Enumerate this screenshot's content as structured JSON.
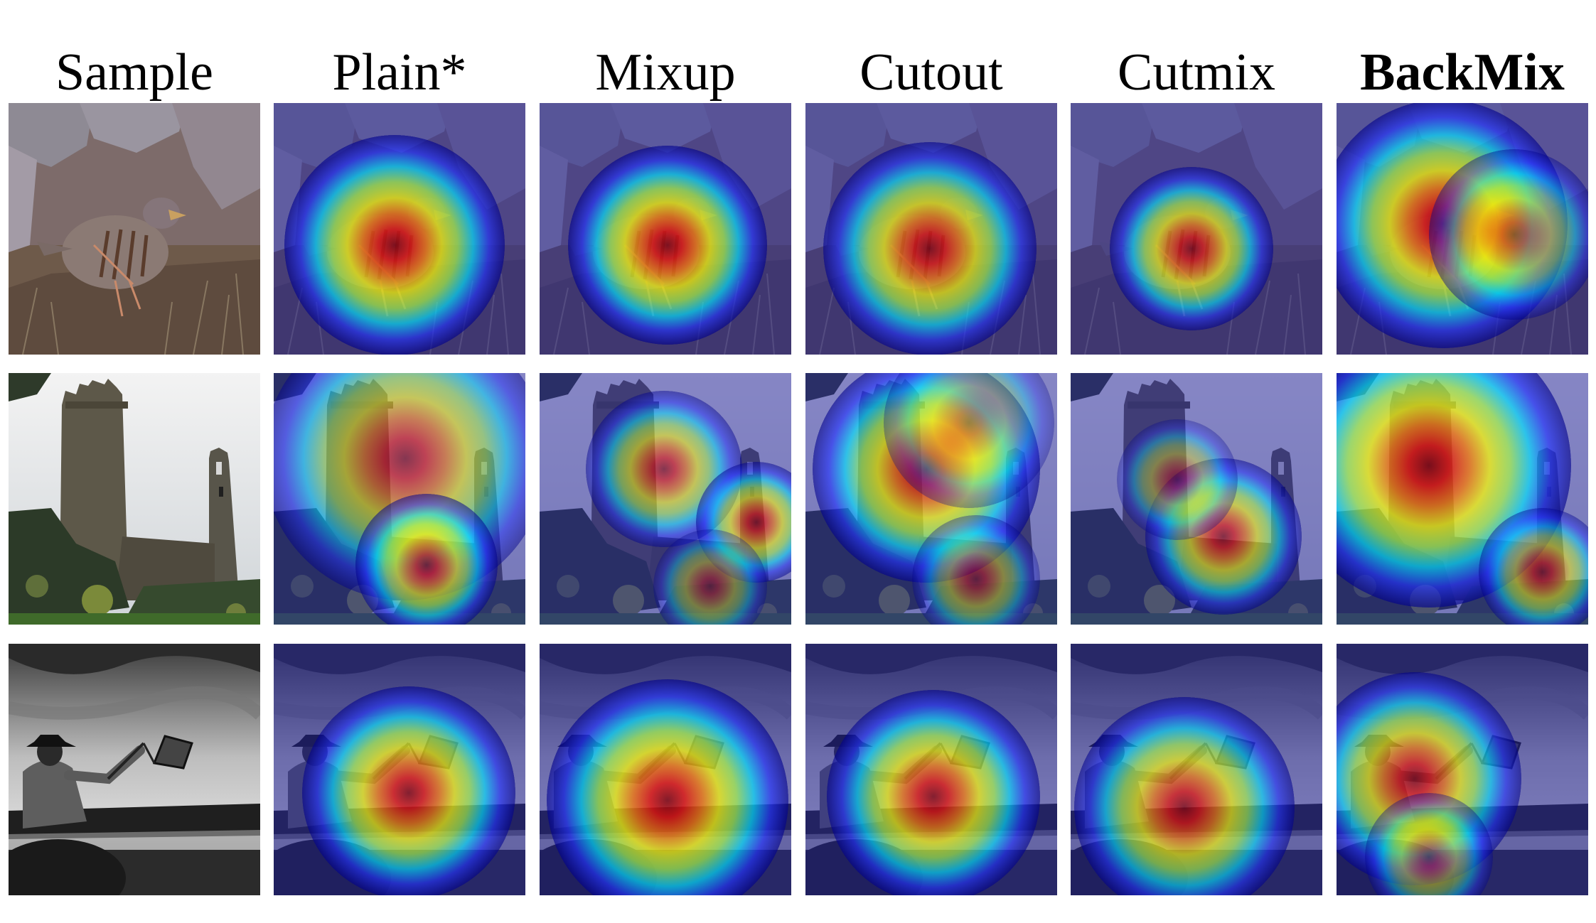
{
  "figure": {
    "columns": [
      {
        "label": "Sample",
        "bold": false
      },
      {
        "label": "Plain*",
        "bold": false
      },
      {
        "label": "Mixup",
        "bold": false
      },
      {
        "label": "Cutout",
        "bold": false
      },
      {
        "label": "Cutmix",
        "bold": false
      },
      {
        "label": "BackMix",
        "bold": true
      }
    ],
    "rows": [
      {
        "subject": "partridge-on-rocks"
      },
      {
        "subject": "stone-castle-tower"
      },
      {
        "subject": "rider-with-flag"
      }
    ],
    "heatmap_colormap": [
      "#00008b",
      "#2233ff",
      "#00e5ff",
      "#aaff44",
      "#ffff00",
      "#ff7a00",
      "#ee1100",
      "#880000"
    ]
  }
}
